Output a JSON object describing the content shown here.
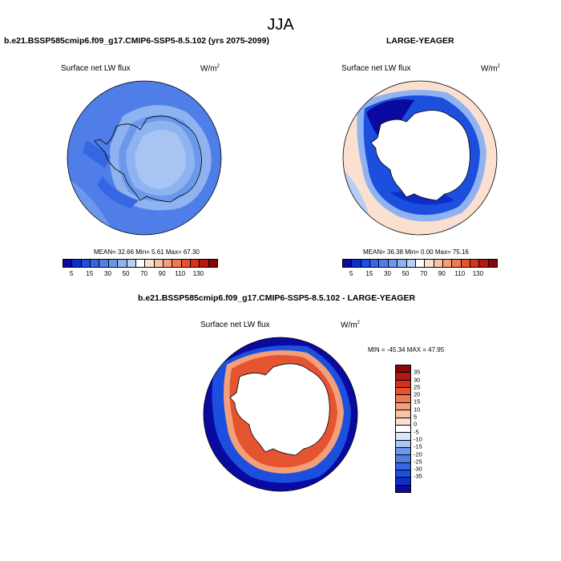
{
  "title": "JJA",
  "panels": [
    {
      "title": "b.e21.BSSP585cmip6.f09_g17.CMIP6-SSP5-8.5.102 (yrs 2075-2099)",
      "variable": "Surface net LW flux",
      "units_base": "W/m",
      "units_exp": "2",
      "stats": "MEAN=  32.66  Min=   5.61  Max=  67.30",
      "mean": 32.66,
      "min": 5.61,
      "max": 67.3
    },
    {
      "title": "LARGE-YEAGER",
      "variable": "Surface net LW flux",
      "units_base": "W/m",
      "units_exp": "2",
      "stats": "MEAN=  36.38  Min=   0.00  Max=  75.16",
      "mean": 36.38,
      "min": 0.0,
      "max": 75.16
    },
    {
      "title": "b.e21.BSSP585cmip6.f09_g17.CMIP6-SSP5-8.5.102 - LARGE-YEAGER",
      "variable": "Surface net LW flux",
      "units_base": "W/m",
      "units_exp": "2",
      "stats": "MIN = -45.34 MAX =  47.95",
      "min": -45.34,
      "max": 47.95
    }
  ],
  "colorbar_abs": {
    "colors": [
      "#0a0aa0",
      "#0e2ec8",
      "#1c4fde",
      "#3666e4",
      "#4f7ee8",
      "#6c98ec",
      "#8fb3f0",
      "#b7cff5",
      "#ffffff",
      "#fbe0d0",
      "#f6c3a6",
      "#f29f7a",
      "#ee7a53",
      "#e55431",
      "#d4321b",
      "#b51711",
      "#8a0606"
    ],
    "tick_labels": [
      "5",
      "15",
      "30",
      "50",
      "70",
      "90",
      "110",
      "130"
    ]
  },
  "colorbar_diff": {
    "colors": [
      "#8a0606",
      "#b51711",
      "#d4321b",
      "#e55431",
      "#ee7a53",
      "#f29f7a",
      "#f6c3a6",
      "#fbe0d0",
      "#ffffff",
      "#d8e6fa",
      "#a8c6f3",
      "#6c98ec",
      "#4f7ee8",
      "#3666e4",
      "#1c4fde",
      "#0e2ec8",
      "#0a0aa0"
    ],
    "tick_labels": [
      "35",
      "30",
      "25",
      "20",
      "15",
      "10",
      "5",
      "0",
      "-5",
      "-10",
      "-15",
      "-20",
      "-25",
      "-30",
      "-35"
    ]
  },
  "map_colors": {
    "ocean_model": "#4f7ee8",
    "ocean_model_light": "#6c98ec",
    "ocean_model_dark": "#3666e4",
    "coast_strip": "#8fb3f0",
    "land": "#ffffff",
    "obs_deep": "#0a0aa0",
    "obs_ring": "#1c4fde",
    "obs_light": "#b7cff5",
    "obs_outer": "#fbe0d0",
    "diff_outer": "#0a0aa0",
    "diff_mid": "#1c4fde",
    "diff_ring": "#e55431",
    "diff_ring_light": "#f29f7a"
  }
}
